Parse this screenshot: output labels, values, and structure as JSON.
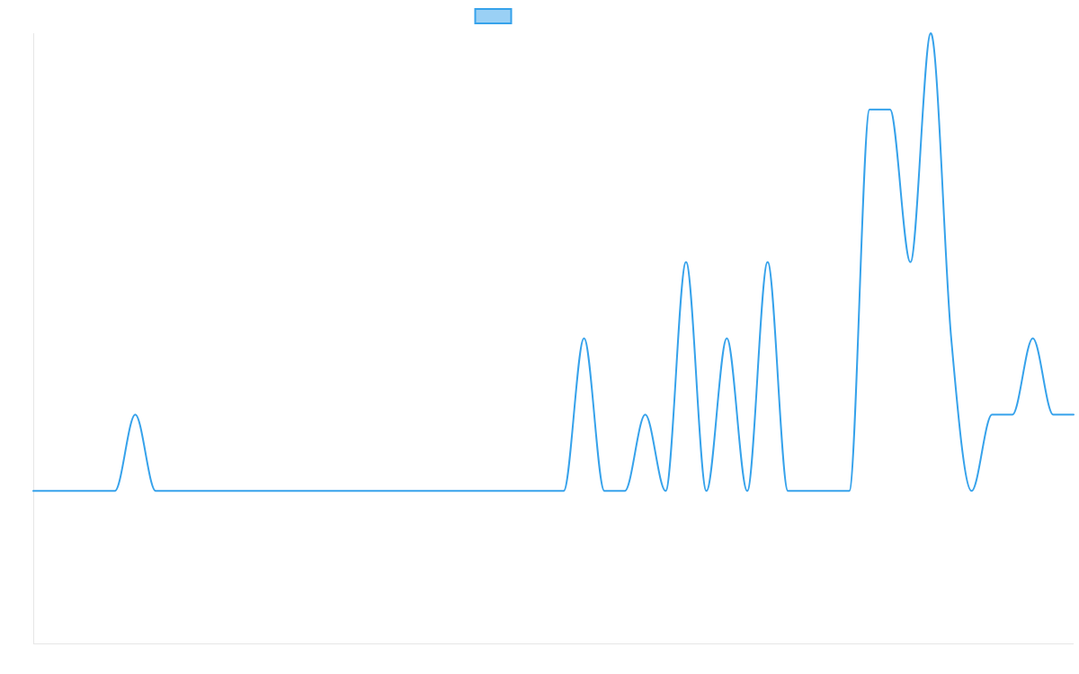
{
  "chart_data": {
    "type": "line",
    "x": [
      0,
      1,
      2,
      3,
      4,
      5,
      6,
      7,
      8,
      9,
      10,
      11,
      12,
      13,
      14,
      15,
      16,
      17,
      18,
      19,
      20,
      21,
      22,
      23,
      24,
      25,
      26,
      27,
      28,
      29,
      30,
      31,
      32,
      33,
      34,
      35,
      36,
      37,
      38,
      39,
      40,
      41,
      42,
      43,
      44,
      45,
      46,
      47,
      48,
      49,
      50,
      51
    ],
    "series": [
      {
        "values": [
          0,
          0,
          0,
          0,
          0,
          1,
          0,
          0,
          0,
          0,
          0,
          0,
          0,
          0,
          0,
          0,
          0,
          0,
          0,
          0,
          0,
          0,
          0,
          0,
          0,
          0,
          0,
          2,
          0,
          0,
          1,
          0,
          3,
          0,
          2,
          0,
          3,
          0,
          0,
          0,
          0,
          5,
          5,
          3,
          6,
          2,
          0,
          1,
          1,
          2,
          1,
          1
        ],
        "color": "#36a2eb",
        "fill": "#9ad0f5"
      }
    ],
    "ylim": [
      -2,
      6
    ],
    "grid": false,
    "legend": "top-center"
  }
}
